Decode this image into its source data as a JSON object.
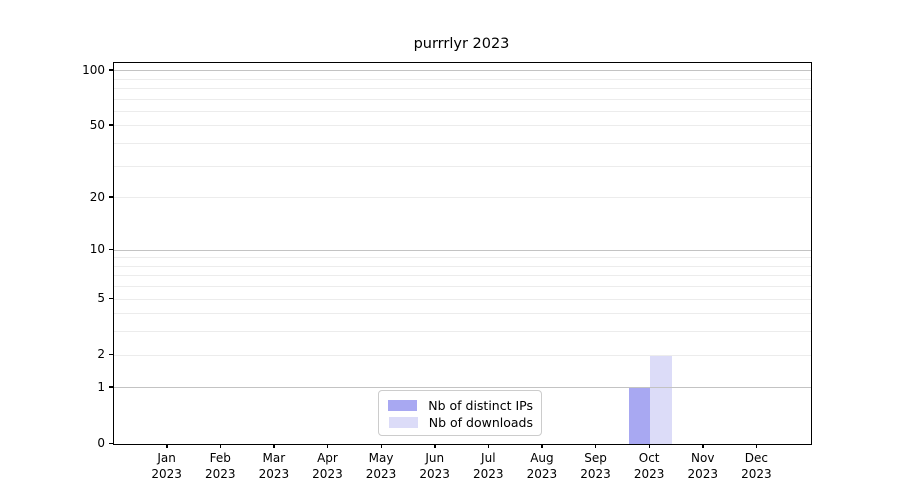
{
  "title": "purrrlyr 2023",
  "chart_data": {
    "type": "bar",
    "title": "purrrlyr 2023",
    "categories": [
      "Jan 2023",
      "Feb 2023",
      "Mar 2023",
      "Apr 2023",
      "May 2023",
      "Jun 2023",
      "Jul 2023",
      "Aug 2023",
      "Sep 2023",
      "Oct 2023",
      "Nov 2023",
      "Dec 2023"
    ],
    "series": [
      {
        "name": "Nb of distinct IPs",
        "color": "#a8a8f2",
        "values": [
          0,
          0,
          0,
          0,
          0,
          0,
          0,
          0,
          0,
          1,
          0,
          0
        ]
      },
      {
        "name": "Nb of downloads",
        "color": "#dcdcf8",
        "values": [
          0,
          0,
          0,
          0,
          0,
          0,
          0,
          0,
          0,
          2,
          0,
          0
        ]
      }
    ],
    "xlabel": "",
    "ylabel": "",
    "y_scale": "log1p",
    "ylim": [
      0,
      110
    ],
    "y_ticks": [
      0,
      1,
      2,
      5,
      10,
      20,
      50,
      100
    ],
    "grid": {
      "on": true,
      "major_values": [
        1,
        10,
        100
      ],
      "minor_values": [
        2,
        3,
        4,
        5,
        6,
        7,
        8,
        9,
        20,
        30,
        40,
        50,
        60,
        70,
        80,
        90
      ],
      "major_color": "#c3c3c3",
      "minor_color": "#ececec"
    },
    "legend": {
      "position": "lower center",
      "entries": [
        "Nb of distinct IPs",
        "Nb of downloads"
      ]
    },
    "colors": {
      "spine": "#000000",
      "background": "#ffffff",
      "text": "#000000"
    }
  }
}
